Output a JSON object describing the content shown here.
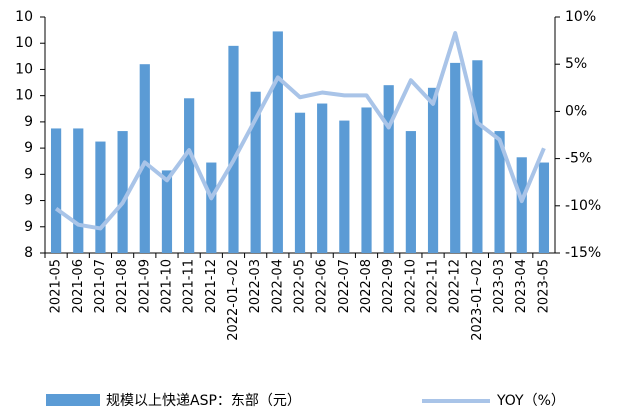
{
  "chart_data": {
    "type": "bar_line",
    "categories": [
      "2021-05",
      "2021-06",
      "2021-07",
      "2021-08",
      "2021-09",
      "2021-10",
      "2021-11",
      "2021-12",
      "2022-01~02",
      "2022-03",
      "2022-04",
      "2022-05",
      "2022-06",
      "2022-07",
      "2022-08",
      "2022-09",
      "2022-10",
      "2022-11",
      "2022-12",
      "2023-01~02",
      "2023-03",
      "2023-04",
      "2023-05"
    ],
    "series": [
      {
        "name": "规模以上快递ASP：东部（元）",
        "color": "#5b9bd5",
        "type": "bar",
        "values": [
          9.35,
          9.35,
          9.25,
          9.33,
          9.84,
          9.03,
          9.58,
          9.09,
          9.98,
          9.63,
          10.09,
          9.47,
          9.54,
          9.41,
          9.51,
          9.68,
          9.33,
          9.66,
          9.85,
          9.87,
          9.33,
          9.13,
          9.09
        ]
      },
      {
        "name": "YOY（%）",
        "color": "#a9c4e8",
        "type": "line",
        "axis": "y2",
        "values": [
          -10.3,
          -12.0,
          -12.4,
          -9.7,
          -5.4,
          -7.3,
          -4.1,
          -9.2,
          -5.2,
          -0.8,
          3.6,
          1.5,
          2.0,
          1.7,
          1.7,
          -1.7,
          3.3,
          0.8,
          8.3,
          -1.2,
          -3.0,
          -9.5,
          -3.9
        ]
      }
    ],
    "ylim": [
      8.4,
      10.2
    ],
    "yticks": [
      {
        "value": 8.4,
        "label": "8"
      },
      {
        "value": 8.6,
        "label": "9"
      },
      {
        "value": 8.8,
        "label": "9"
      },
      {
        "value": 9.0,
        "label": "9"
      },
      {
        "value": 9.2,
        "label": "9"
      },
      {
        "value": 9.4,
        "label": "9"
      },
      {
        "value": 9.6,
        "label": "10"
      },
      {
        "value": 9.8,
        "label": "10"
      },
      {
        "value": 10.0,
        "label": "10"
      },
      {
        "value": 10.2,
        "label": "10"
      }
    ],
    "y2lim": [
      -15,
      10
    ],
    "y2ticks": [
      {
        "value": -15,
        "label": "-15%"
      },
      {
        "value": -10,
        "label": "-10%"
      },
      {
        "value": -5,
        "label": "-5%"
      },
      {
        "value": 0,
        "label": "0%"
      },
      {
        "value": 5,
        "label": "5%"
      },
      {
        "value": 10,
        "label": "10%"
      }
    ]
  }
}
